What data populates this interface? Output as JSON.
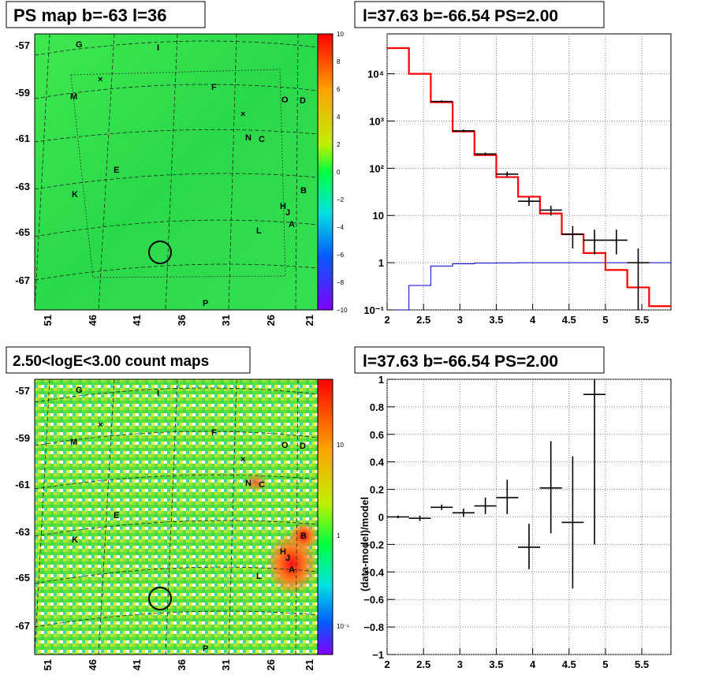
{
  "colors": {
    "map_green": "#2ee24a",
    "model_red": "#ff0000",
    "blue_line": "#0000cc",
    "data_black": "#000000"
  },
  "panels": {
    "ps_map": {
      "title": "PS map b=-63 l=36",
      "y_ticks": [
        "-57",
        "-59",
        "-61",
        "-63",
        "-65",
        "-67"
      ],
      "x_ticks": [
        "51",
        "46",
        "41",
        "36",
        "31",
        "26",
        "21"
      ],
      "colorbar_ticks": [
        "10",
        "8",
        "6",
        "4",
        "2",
        "0",
        "−2",
        "−4",
        "−6",
        "−8",
        "−10"
      ]
    },
    "count_map": {
      "title": "2.50<logE<3.00 count maps",
      "y_ticks": [
        "-57",
        "-59",
        "-61",
        "-63",
        "-65",
        "-67"
      ],
      "x_ticks": [
        "51",
        "46",
        "41",
        "36",
        "31",
        "26",
        "21"
      ],
      "colorbar_ticks": [
        "10",
        "1",
        "10⁻¹"
      ]
    },
    "spectrum": {
      "title": "l=37.63 b=-66.54 PS=2.00"
    },
    "residual": {
      "title": "l=37.63 b=-66.54 PS=2.00"
    }
  },
  "source_labels": [
    "G",
    "I",
    "M",
    "F",
    "O",
    "D",
    "N",
    "C",
    "E",
    "K",
    "B",
    "H",
    "J",
    "A",
    "L",
    "P"
  ],
  "chart_data": [
    {
      "type": "line",
      "title": "l=37.63 b=-66.54 PS=2.00",
      "xlim": [
        2,
        5.9
      ],
      "ylim": [
        0.1,
        70000
      ],
      "log_y": true,
      "grid": true,
      "x_ticks": [
        "2",
        "2.5",
        "3",
        "3.5",
        "4",
        "4.5",
        "5",
        "5.5"
      ],
      "y_ticks": [
        "10⁻¹",
        "1",
        "10",
        "10²",
        "10³",
        "10⁴"
      ],
      "model_red": {
        "edges": [
          2.0,
          2.3,
          2.6,
          2.9,
          3.2,
          3.5,
          3.8,
          4.1,
          4.4,
          4.7,
          5.0,
          5.3,
          5.6,
          5.9
        ],
        "values": [
          35000,
          10000,
          2500,
          600,
          190,
          65,
          25,
          11,
          4,
          1.6,
          0.7,
          0.3,
          0.12
        ]
      },
      "blue_line": {
        "edges": [
          2.0,
          2.3,
          2.6,
          2.9,
          3.2,
          3.5,
          3.8,
          4.1,
          4.4,
          4.7,
          5.0,
          5.3,
          5.6,
          5.9
        ],
        "values": [
          0.1,
          0.33,
          0.85,
          0.95,
          0.98,
          0.99,
          1.0,
          1.0,
          1.0,
          1.0,
          1.0,
          1.0,
          1.0
        ]
      },
      "data_points": {
        "x": [
          2.75,
          3.05,
          3.35,
          3.65,
          3.95,
          4.25,
          4.55,
          4.85,
          5.15,
          5.45
        ],
        "y": [
          2600,
          620,
          200,
          75,
          20,
          13,
          4,
          3,
          3,
          1
        ],
        "ylow": [
          2450,
          580,
          185,
          65,
          16,
          10,
          2,
          1.5,
          1.5,
          0.1
        ],
        "yhigh": [
          2750,
          660,
          215,
          85,
          24,
          16,
          6,
          5,
          5,
          2
        ]
      }
    },
    {
      "type": "scatter",
      "title": "l=37.63 b=-66.54 PS=2.00",
      "ylabel": "(data-model)/model",
      "xlim": [
        2,
        5.9
      ],
      "ylim": [
        -1,
        1
      ],
      "grid": true,
      "x_ticks": [
        "2",
        "2.5",
        "3",
        "3.5",
        "4",
        "4.5",
        "5",
        "5.5"
      ],
      "y_ticks": [
        "−1",
        "−0.8",
        "−0.6",
        "−0.4",
        "−0.2",
        "0",
        "0.2",
        "0.4",
        "0.6",
        "0.8",
        "1"
      ],
      "points": {
        "x": [
          2.15,
          2.45,
          2.75,
          3.05,
          3.35,
          3.65,
          3.95,
          4.25,
          4.55,
          4.85
        ],
        "y": [
          0.0,
          -0.01,
          0.07,
          0.03,
          0.08,
          0.14,
          -0.22,
          0.21,
          -0.04,
          0.89
        ],
        "ylow": [
          -0.01,
          -0.03,
          0.05,
          0.0,
          0.02,
          0.02,
          -0.38,
          -0.12,
          -0.52,
          -0.2
        ],
        "yhigh": [
          0.01,
          0.01,
          0.09,
          0.06,
          0.14,
          0.27,
          -0.05,
          0.55,
          0.44,
          1.0
        ]
      }
    }
  ]
}
